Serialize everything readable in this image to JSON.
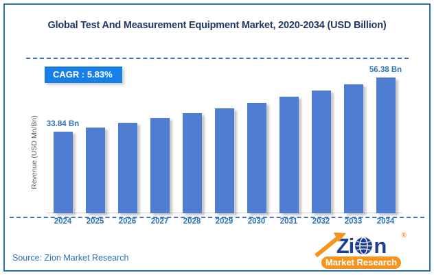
{
  "title": "Global Test And Measurement Equipment Market, 2020-2034 (USD Billion)",
  "cagr_badge": {
    "label": "CAGR :  5.83%",
    "bg_color": "#1780E8"
  },
  "y_axis_label": "Revenue (USD Mn/Bn)",
  "footer": {
    "source": "Source: Zion Market Research"
  },
  "logo": {
    "brand_prefix": "Zi",
    "brand_suffix": "n",
    "tagline": "Market Research",
    "registered_mark": "®",
    "navy": "#1C3D94",
    "orange": "#F7941D"
  },
  "chart_data": {
    "type": "bar",
    "title": "Global Test And Measurement Equipment Market, 2020-2034 (USD Billion)",
    "categories": [
      "2024",
      "2025",
      "2026",
      "2027",
      "2028",
      "2029",
      "2030",
      "2031",
      "2032",
      "2033",
      "2034"
    ],
    "values": [
      33.84,
      35.61,
      37.48,
      39.44,
      41.51,
      43.68,
      45.97,
      48.38,
      50.92,
      53.58,
      56.38
    ],
    "data_labels": [
      "33.84 Bn",
      "",
      "",
      "",
      "",
      "",
      "",
      "",
      "",
      "",
      "56.38 Bn"
    ],
    "cagr": "5.83%",
    "xlabel": "",
    "ylabel": "Revenue (USD Mn/Bn)",
    "ylim": [
      0,
      60
    ],
    "grid": false,
    "legend": false,
    "bar_color": "#4E7DD1",
    "label_color": "#2E74B5"
  }
}
